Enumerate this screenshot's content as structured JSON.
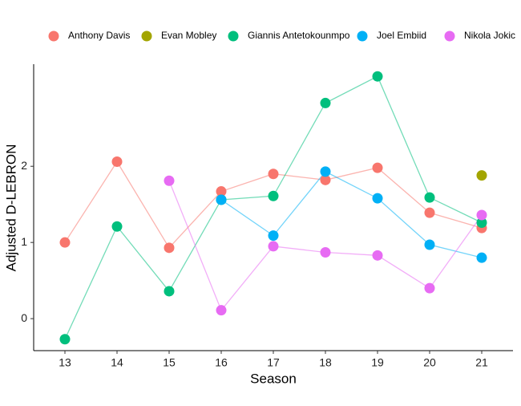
{
  "chart_data": {
    "type": "line",
    "x_label": "Season",
    "y_label": "Adjusted D-LEBRON",
    "x": [
      13,
      14,
      15,
      16,
      17,
      18,
      19,
      20,
      21
    ],
    "xlim": [
      12.4,
      21.6
    ],
    "xticks": [
      13,
      14,
      15,
      16,
      17,
      18,
      19,
      20,
      21
    ],
    "ylim": [
      -0.42,
      3.34
    ],
    "yticks": [
      0,
      1,
      2
    ],
    "grid": false,
    "legend": "top",
    "series": [
      {
        "name": "Anthony Davis",
        "color": "#F8766D",
        "values": [
          1.0,
          2.06,
          0.93,
          1.67,
          1.9,
          1.82,
          1.98,
          1.39,
          1.19
        ]
      },
      {
        "name": "Evan Mobley",
        "color": "#A3A500",
        "values": [
          null,
          null,
          null,
          null,
          null,
          null,
          null,
          null,
          1.88
        ]
      },
      {
        "name": "Giannis Antetokounmpo",
        "color": "#00BF7D",
        "values": [
          -0.27,
          1.21,
          0.36,
          1.56,
          1.61,
          2.83,
          3.18,
          1.59,
          1.26
        ]
      },
      {
        "name": "Joel Embiid",
        "color": "#00B0F6",
        "values": [
          null,
          null,
          null,
          1.56,
          1.09,
          1.93,
          1.58,
          0.97,
          0.8
        ]
      },
      {
        "name": "Nikola Jokic",
        "color": "#E76BF3",
        "values": [
          null,
          null,
          1.81,
          0.11,
          0.95,
          0.87,
          0.83,
          0.4,
          1.36
        ]
      }
    ]
  }
}
